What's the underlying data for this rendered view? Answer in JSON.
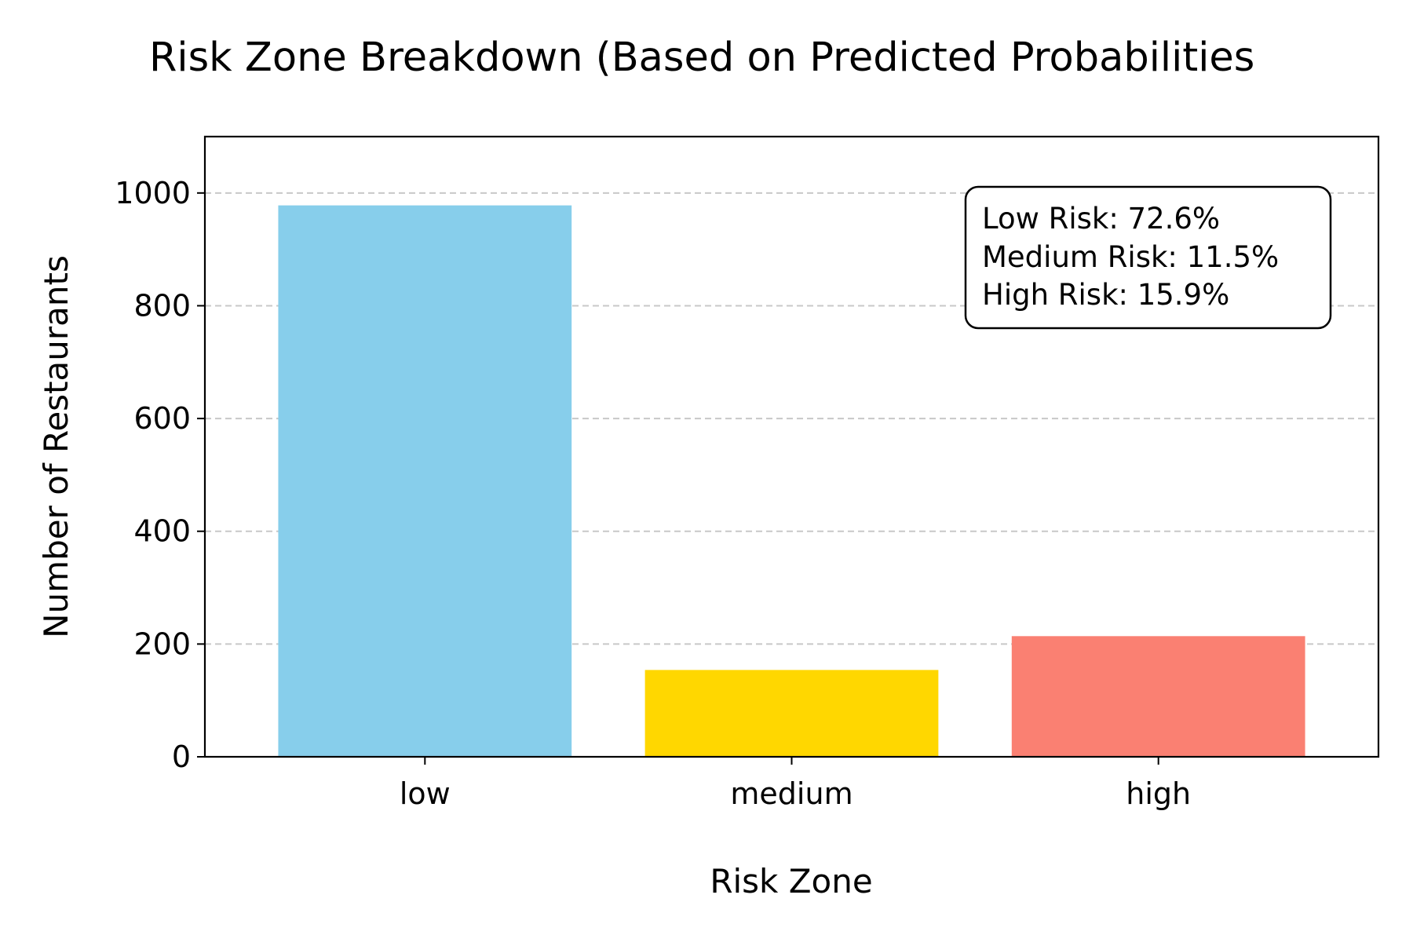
{
  "chart_data": {
    "type": "bar",
    "title": "Risk Zone Breakdown (Based on Predicted Probabilities",
    "xlabel": "Risk Zone",
    "ylabel": "Number of Restaurants",
    "categories": [
      "low",
      "medium",
      "high"
    ],
    "values": [
      978,
      154,
      214
    ],
    "colors": [
      "#87CEEB",
      "#FFD700",
      "#FA8072"
    ],
    "ylim": [
      0,
      1100
    ],
    "yticks": [
      0,
      200,
      400,
      600,
      800,
      1000
    ],
    "grid": "y-dashed",
    "annotation": {
      "placement": "top-right",
      "lines": [
        "Low Risk: 72.6%",
        "Medium Risk: 11.5%",
        "High Risk: 15.9%"
      ]
    }
  }
}
